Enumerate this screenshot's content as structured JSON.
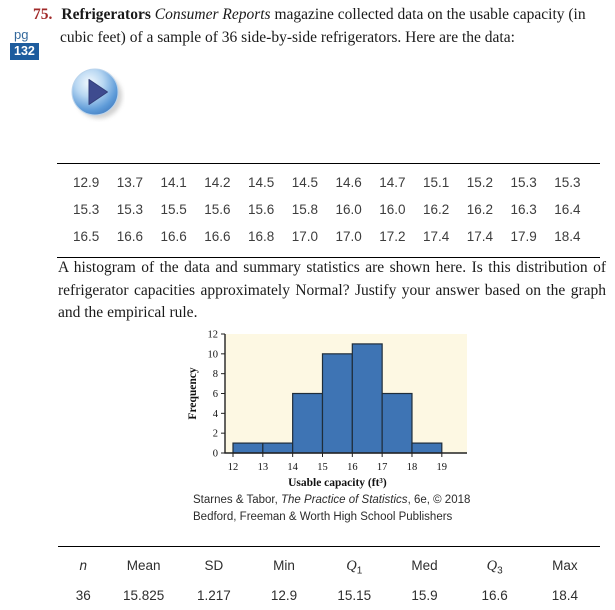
{
  "problem": {
    "number": "75.",
    "title": "Refrigerators ",
    "source": "Consumer Reports",
    "intro_rest": " magazine collected data on the usable capacity (in cubic feet) of a sample of 36 side-by-side refrigerators. Here are the data:",
    "page_marker": {
      "label": "pg",
      "page": "132"
    }
  },
  "media": {
    "play_button": "play-icon"
  },
  "data_table": {
    "rows": [
      [
        "12.9",
        "13.7",
        "14.1",
        "14.2",
        "14.5",
        "14.5",
        "14.6",
        "14.7",
        "15.1",
        "15.2",
        "15.3",
        "15.3"
      ],
      [
        "15.3",
        "15.3",
        "15.5",
        "15.6",
        "15.6",
        "15.8",
        "16.0",
        "16.0",
        "16.2",
        "16.2",
        "16.3",
        "16.4"
      ],
      [
        "16.5",
        "16.6",
        "16.6",
        "16.6",
        "16.8",
        "17.0",
        "17.0",
        "17.2",
        "17.4",
        "17.4",
        "17.9",
        "18.4"
      ]
    ]
  },
  "question": {
    "text": "A histogram of the data and summary statistics are shown here. Is this distribution of refrigerator capacities approximately Normal? Justify your answer based on the graph and the empirical rule."
  },
  "chart_data": {
    "type": "bar",
    "title": "",
    "xlabel": "Usable capacity (ft³)",
    "ylabel": "Frequency",
    "bin_edges": [
      12,
      13,
      14,
      15,
      16,
      17,
      18,
      19
    ],
    "frequencies": [
      1,
      1,
      6,
      10,
      11,
      6,
      1
    ],
    "xlim": [
      11.7,
      19.8
    ],
    "ylim": [
      0,
      12
    ],
    "yticks": [
      0,
      2,
      4,
      6,
      8,
      10,
      12
    ],
    "grid": false,
    "bar_color": "#3E74B4",
    "bar_edge_color": "#1F2D3A",
    "plot_bg": "#FDF8E3"
  },
  "attribution": {
    "line1_pre": "Starnes & Tabor, ",
    "line1_italic": "The Practice of Statistics",
    "line1_post": ", 6e, © 2018",
    "line2": "Bedford, Freeman & Worth High School Publishers"
  },
  "summary_table": {
    "headers": [
      "n",
      "Mean",
      "SD",
      "Min",
      "Q1",
      "Med",
      "Q3",
      "Max"
    ],
    "values": [
      "36",
      "15.825",
      "1.217",
      "12.9",
      "15.15",
      "15.9",
      "16.6",
      "18.4"
    ]
  },
  "colors": {
    "problem_number": "#A12A2A",
    "page_marker_text": "#33689B",
    "page_badge_bg": "#1D5C9E",
    "bar_fill": "#3E74B4",
    "plot_background": "#FDF8E3"
  }
}
